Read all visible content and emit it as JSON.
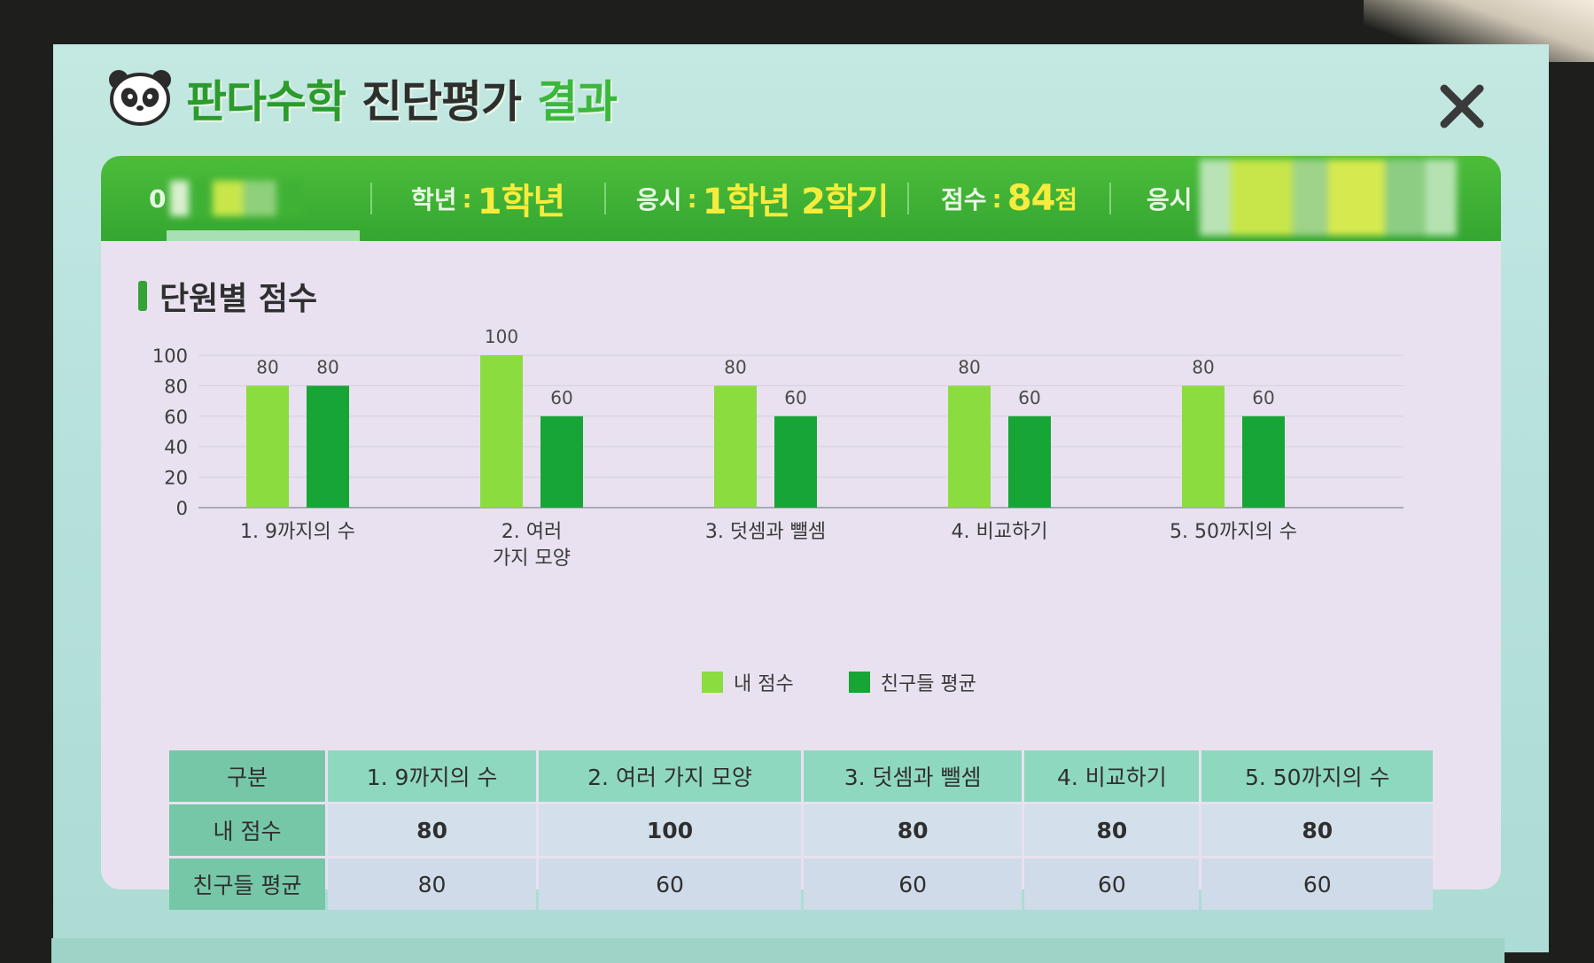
{
  "header": {
    "title_part1": "판다수학",
    "title_part2": "진단평가",
    "title_part3": "결과"
  },
  "info_bar": {
    "name_partial": "0",
    "grade_label": "학년",
    "grade_value": "1학년",
    "exam_label": "응시",
    "exam_value": "1학년 2학기",
    "score_label": "점수",
    "score_value": "84",
    "score_unit": "점",
    "date_label_partial": "응시"
  },
  "section": {
    "title": "단원별 점수"
  },
  "legend": {
    "mine": "내 점수",
    "avg": "친구들 평균"
  },
  "colors": {
    "mine": "#8bdc3f",
    "avg": "#17a535",
    "info_bar": "#3fb236",
    "accent_yellow": "#f6ec3e"
  },
  "chart_data": {
    "type": "bar",
    "categories": [
      "1. 9까지의 수",
      "2. 여러 가지 모양",
      "3. 덧셈과 뺄셈",
      "4. 비교하기",
      "5. 50까지의 수"
    ],
    "category_lines": [
      [
        "1. 9까지의 수"
      ],
      [
        "2. 여러",
        "가지 모양"
      ],
      [
        "3. 덧셈과 뺄셈"
      ],
      [
        "4. 비교하기"
      ],
      [
        "5. 50까지의 수"
      ]
    ],
    "series": [
      {
        "name": "내 점수",
        "values": [
          80,
          100,
          80,
          80,
          80
        ]
      },
      {
        "name": "친구들 평균",
        "values": [
          80,
          60,
          60,
          60,
          60
        ]
      }
    ],
    "yticks": [
      0,
      20,
      40,
      60,
      80,
      100
    ],
    "ylim": [
      0,
      100
    ],
    "grid": true,
    "legend_position": "bottom-center"
  },
  "table": {
    "corner": "구분",
    "columns": [
      "1. 9까지의 수",
      "2. 여러 가지 모양",
      "3. 덧셈과 뺄셈",
      "4. 비교하기",
      "5. 50까지의 수"
    ],
    "rows": [
      {
        "label": "내 점수",
        "values": [
          "80",
          "100",
          "80",
          "80",
          "80"
        ]
      },
      {
        "label": "친구들 평균",
        "values": [
          "80",
          "60",
          "60",
          "60",
          "60"
        ]
      }
    ]
  }
}
